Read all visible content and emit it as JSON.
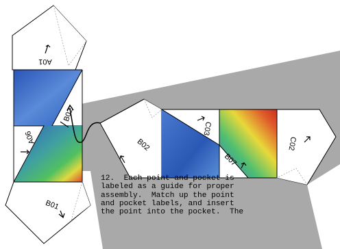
{
  "labels": {
    "a01": "A01",
    "a06": "A06",
    "b01": "B01",
    "b02_left": "B02",
    "b02_right": "B02",
    "c03": "C03",
    "b07": "B07",
    "c02": "C02"
  },
  "caption_lines": [
    "12.  Each point and pocket is",
    "labeled as a guide for proper",
    "assembly.  Match up the point",
    "and pocket labels, and insert",
    "the point into the pocket.  The"
  ],
  "colors": {
    "shadow": "#a9a9a9",
    "map_blue": "#3a6cc8",
    "map_green": "#3cb86a",
    "map_yellow": "#e8d83a",
    "map_red": "#d8402a"
  }
}
